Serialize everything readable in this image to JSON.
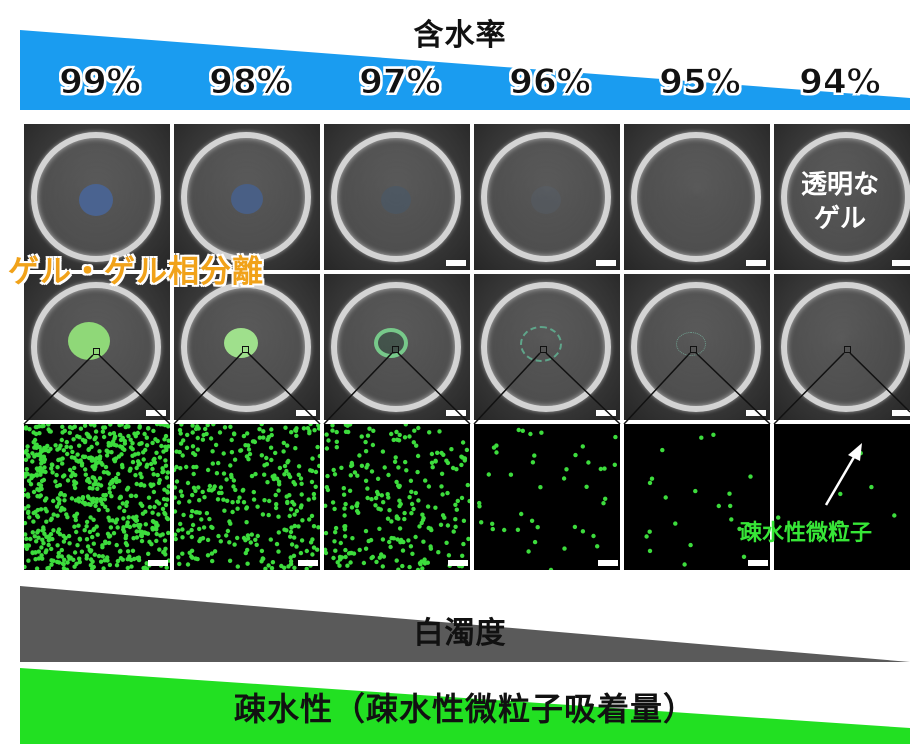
{
  "water_content": {
    "title": "含水率",
    "levels": [
      "99%",
      "98%",
      "97%",
      "96%",
      "95%",
      "94%"
    ]
  },
  "labels": {
    "gel_phase_separation": "ゲル・ゲル相分離",
    "clear_gel_line1": "透明な",
    "clear_gel_line2": "ゲル",
    "hydrophobic_microparticles": "疎水性微粒子",
    "turbidity": "白濁度",
    "hydrophobicity": "疎水性（疎水性微粒子吸着量）"
  },
  "colors": {
    "water_wedge": "#1a9cf0",
    "turbidity_wedge": "#5a5a5a",
    "hydrophobicity_wedge": "#22e022",
    "gel_phase_text": "#f1a219",
    "particle_green": "#3ddc3d"
  },
  "particle_density": [
    0.95,
    0.45,
    0.35,
    0.06,
    0.03,
    0.01
  ]
}
